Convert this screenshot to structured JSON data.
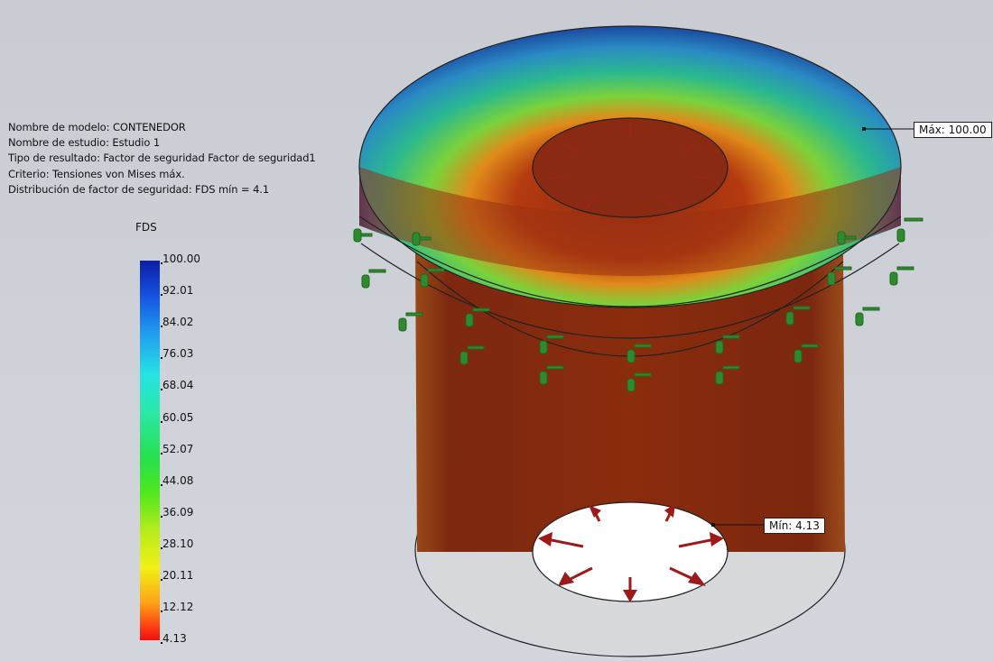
{
  "info": {
    "model_name": "Nombre de modelo: CONTENEDOR",
    "study_name": "Nombre de estudio: Estudio 1",
    "result_type": "Tipo de resultado: Factor de seguridad Factor de seguridad1",
    "criterion": "Criterio: Tensiones von Mises máx.",
    "distribution": "Distribución de factor de seguridad: FDS mín = 4.1"
  },
  "legend": {
    "title": "FDS",
    "ticks": [
      "100.00",
      "92.01",
      "84.02",
      "76.03",
      "68.04",
      "60.05",
      "52.07",
      "44.08",
      "36.09",
      "28.10",
      "20.11",
      "12.12",
      "4.13"
    ],
    "colors": {
      "max": "#0b1ea6",
      "min": "#ee1010"
    }
  },
  "callouts": {
    "max": "Máx: 100.00",
    "min": "Mín: 4.13"
  },
  "colors": {
    "body": "#8b2a0c",
    "fixture_arrow": "#2f8a2f",
    "load_arrow": "#b01c1c",
    "background": "#cbced5"
  }
}
